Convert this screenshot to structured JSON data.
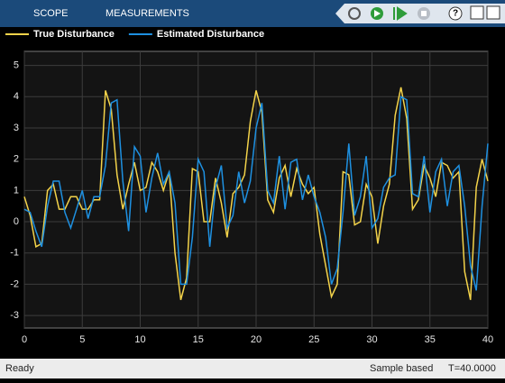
{
  "toolbar": {
    "tabs": [
      "SCOPE",
      "MEASUREMENTS"
    ]
  },
  "status": {
    "left": "Ready",
    "mode": "Sample based",
    "time": "T=40.0000"
  },
  "chart_data": {
    "type": "line",
    "x": [
      0,
      0.5,
      1,
      1.5,
      2,
      2.5,
      3,
      3.5,
      4,
      4.5,
      5,
      5.5,
      6,
      6.5,
      7,
      7.5,
      8,
      8.5,
      9,
      9.5,
      10,
      10.5,
      11,
      11.5,
      12,
      12.5,
      13,
      13.5,
      14,
      14.5,
      15,
      15.5,
      16,
      16.5,
      17,
      17.5,
      18,
      18.5,
      19,
      19.5,
      20,
      20.5,
      21,
      21.5,
      22,
      22.5,
      23,
      23.5,
      24,
      24.5,
      25,
      25.5,
      26,
      26.5,
      27,
      27.5,
      28,
      28.5,
      29,
      29.5,
      30,
      30.5,
      31,
      31.5,
      32,
      32.5,
      33,
      33.5,
      34,
      34.5,
      35,
      35.5,
      36,
      36.5,
      37,
      37.5,
      38,
      38.5,
      39,
      39.5,
      40
    ],
    "series": [
      {
        "name": "True Disturbance",
        "color": "#f3d34a",
        "values": [
          0.8,
          0.2,
          -0.8,
          -0.7,
          1.0,
          1.2,
          0.4,
          0.4,
          0.8,
          0.8,
          0.4,
          0.4,
          0.7,
          0.7,
          4.2,
          3.6,
          1.5,
          0.4,
          1.2,
          1.9,
          1.0,
          1.1,
          1.9,
          1.6,
          1.0,
          1.6,
          -1.0,
          -2.5,
          -1.8,
          1.7,
          1.6,
          0,
          0,
          1.4,
          0.6,
          -0.5,
          0.9,
          1.1,
          1.5,
          3.2,
          4.2,
          3.5,
          0.7,
          0.3,
          1.4,
          1.8,
          0.8,
          1.7,
          1.2,
          0.9,
          1.1,
          -0.4,
          -1.4,
          -2.4,
          -2.0,
          1.6,
          1.5,
          -0.1,
          0,
          1.2,
          0.8,
          -0.7,
          0.5,
          1.2,
          3.4,
          4.3,
          3.3,
          0.4,
          0.7,
          1.8,
          1.4,
          0.8,
          1.9,
          1.8,
          1.4,
          1.6,
          -1.6,
          -2.5,
          1.1,
          2.0,
          1.3
        ]
      },
      {
        "name": "Estimated Disturbance",
        "color": "#1e90e0",
        "values": [
          0.4,
          0.3,
          -0.3,
          -0.8,
          0.5,
          1.3,
          1.3,
          0.3,
          -0.2,
          0.4,
          1.0,
          0.1,
          0.8,
          0.8,
          1.8,
          3.8,
          3.9,
          1.3,
          -0.3,
          2.4,
          2.1,
          0.3,
          1.4,
          2.2,
          1.2,
          1.6,
          0.6,
          -2.0,
          -2.0,
          -0.5,
          2.0,
          1.6,
          -0.8,
          1.1,
          1.8,
          -0.2,
          0.2,
          1.6,
          0.6,
          1.3,
          3.0,
          3.8,
          1.0,
          0.6,
          2.1,
          0.4,
          1.9,
          2.0,
          0.7,
          1.5,
          0.8,
          0.3,
          -0.5,
          -2.0,
          -1.5,
          0.3,
          2.5,
          0.2,
          0.8,
          2.1,
          -0.2,
          0.1,
          1.1,
          1.4,
          1.5,
          4.0,
          3.9,
          0.9,
          0.8,
          2.1,
          0.3,
          1.6,
          2.0,
          0.5,
          1.6,
          1.8,
          0.5,
          -1.4,
          -2.2,
          0.5,
          2.5
        ]
      }
    ],
    "xlim": [
      0,
      40
    ],
    "xticks": [
      0,
      5,
      10,
      15,
      20,
      25,
      30,
      35,
      40
    ],
    "ylim": [
      -3.4,
      5.45
    ],
    "yticks": [
      -3,
      -2,
      -1,
      0,
      1,
      2,
      3,
      4,
      5
    ],
    "grid": true
  }
}
